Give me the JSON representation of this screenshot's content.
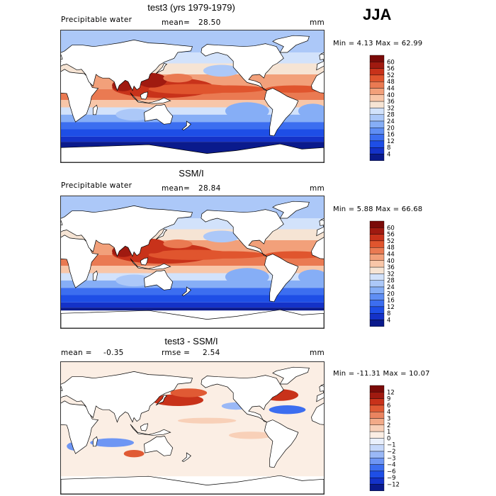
{
  "season": "JJA",
  "palette": {
    "sequential": [
      "#0a1a8c",
      "#1432c8",
      "#1e4ee6",
      "#3c6ef0",
      "#5f8ef4",
      "#86aef6",
      "#acc8f8",
      "#d2e2fb",
      "#f6e4d4",
      "#f8c6a8",
      "#f2a07a",
      "#ea7a52",
      "#e0552e",
      "#c8321a",
      "#a01a10",
      "#7a0a08"
    ],
    "difference": [
      "#0a1a8c",
      "#1432c8",
      "#1e4ee6",
      "#3c6ef0",
      "#6e96f4",
      "#9ab8f6",
      "#c6d8fa",
      "#eaf0fc",
      "#fbeee4",
      "#f8d0b8",
      "#f2aa88",
      "#ea8460",
      "#e05a34",
      "#c8321a",
      "#a01a10",
      "#7a0a08"
    ]
  },
  "panels": [
    {
      "title": "test3 (yrs 1979-1979)",
      "variable": "Precipitable water",
      "stat_label": "mean=",
      "stat_value": "28.50",
      "stat2_label": "",
      "stat2_value": "",
      "units": "mm",
      "range_text": "Min =    4.13 Max =   62.99",
      "colorbar": [
        "4",
        "8",
        "12",
        "16",
        "20",
        "24",
        "28",
        "32",
        "36",
        "40",
        "44",
        "48",
        "52",
        "56",
        "60"
      ],
      "field": "model"
    },
    {
      "title": "SSM/I",
      "variable": "Precipitable water",
      "stat_label": "mean=",
      "stat_value": "28.84",
      "stat2_label": "",
      "stat2_value": "",
      "units": "mm",
      "range_text": "Min =    5.88 Max =   66.68",
      "colorbar": [
        "4",
        "8",
        "12",
        "16",
        "20",
        "24",
        "28",
        "32",
        "36",
        "40",
        "44",
        "48",
        "52",
        "56",
        "60"
      ],
      "field": "obs"
    },
    {
      "title": "test3 - SSM/I",
      "variable": "",
      "stat_label": "mean =",
      "stat_value": "-0.35",
      "stat2_label": "rmse =",
      "stat2_value": "2.54",
      "units": "mm",
      "range_text": "Min = -11.31 Max =   10.07",
      "colorbar": [
        "−12",
        "−9",
        "−6",
        "−4",
        "−3",
        "−2",
        "−1",
        "0",
        "1",
        "2",
        "3",
        "4",
        "6",
        "9",
        "12"
      ],
      "field": "diff"
    }
  ],
  "chart_data": [
    {
      "type": "heatmap",
      "title": "test3 (yrs 1979-1979)",
      "variable": "Precipitable water",
      "units": "mm",
      "season": "JJA",
      "mean": 28.5,
      "min": 4.13,
      "max": 62.99,
      "colorbar_levels": [
        4,
        8,
        12,
        16,
        20,
        24,
        28,
        32,
        36,
        40,
        44,
        48,
        52,
        56,
        60
      ],
      "x_extent_deg_lon": [
        0,
        360
      ],
      "y_extent_deg_lat": [
        -90,
        90
      ]
    },
    {
      "type": "heatmap",
      "title": "SSM/I",
      "variable": "Precipitable water",
      "units": "mm",
      "season": "JJA",
      "mean": 28.84,
      "min": 5.88,
      "max": 66.68,
      "colorbar_levels": [
        4,
        8,
        12,
        16,
        20,
        24,
        28,
        32,
        36,
        40,
        44,
        48,
        52,
        56,
        60
      ],
      "x_extent_deg_lon": [
        0,
        360
      ],
      "y_extent_deg_lat": [
        -90,
        90
      ]
    },
    {
      "type": "heatmap",
      "title": "test3 - SSM/I",
      "units": "mm",
      "season": "JJA",
      "mean": -0.35,
      "rmse": 2.54,
      "min": -11.31,
      "max": 10.07,
      "colorbar_levels": [
        -12,
        -9,
        -6,
        -4,
        -3,
        -2,
        -1,
        0,
        1,
        2,
        3,
        4,
        6,
        9,
        12
      ],
      "x_extent_deg_lon": [
        0,
        360
      ],
      "y_extent_deg_lat": [
        -90,
        90
      ]
    }
  ]
}
